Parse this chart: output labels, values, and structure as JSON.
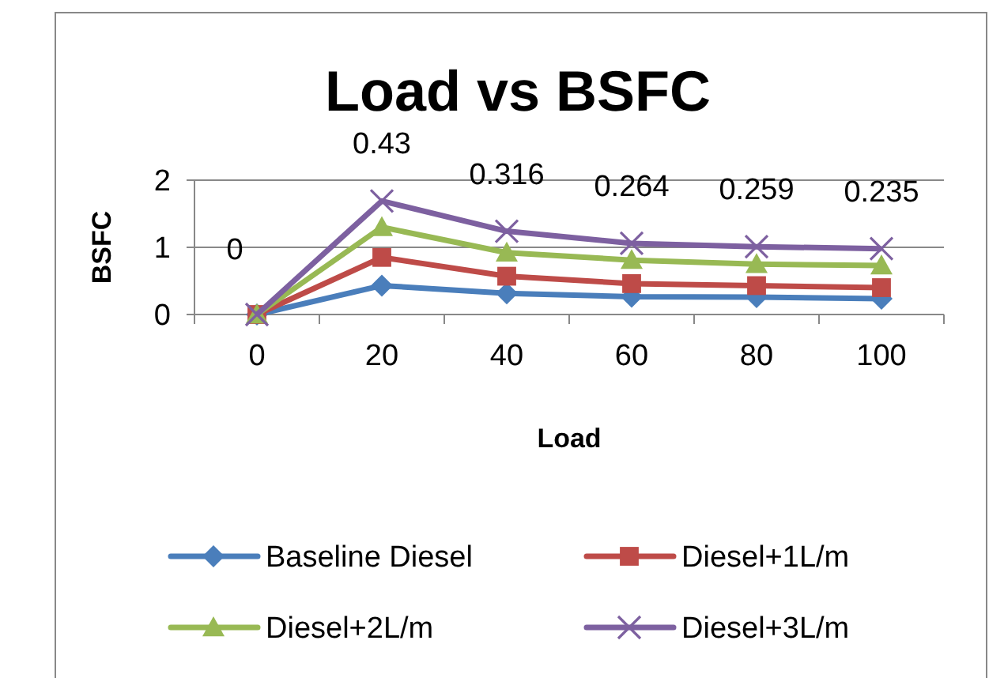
{
  "chart_data": {
    "type": "line",
    "title": "Load vs BSFC",
    "xlabel": "Load",
    "ylabel": "BSFC",
    "categories": [
      "0",
      "20",
      "40",
      "60",
      "80",
      "100"
    ],
    "ylim": [
      0,
      2
    ],
    "yticks": [
      0,
      1,
      2
    ],
    "grid": "y",
    "legend": "bottom",
    "line_style": "solid",
    "annotations": [
      "0",
      "0.43",
      "0.316",
      "0.264",
      "0.259",
      "0.235"
    ],
    "series": [
      {
        "name": "Baseline Diesel",
        "color": "#4a7ebb",
        "marker": "diamond",
        "values": [
          0,
          0.43,
          0.316,
          0.264,
          0.259,
          0.235
        ]
      },
      {
        "name": "Diesel+1L/m",
        "color": "#be4b48",
        "marker": "square",
        "values": [
          0,
          0.85,
          0.57,
          0.46,
          0.43,
          0.4
        ]
      },
      {
        "name": "Diesel+2L/m",
        "color": "#98b954",
        "marker": "triangle",
        "values": [
          0,
          1.3,
          0.92,
          0.81,
          0.75,
          0.73
        ]
      },
      {
        "name": "Diesel+3L/m",
        "color": "#7d60a0",
        "marker": "cross",
        "values": [
          0,
          1.69,
          1.24,
          1.06,
          1.01,
          0.98
        ]
      }
    ]
  }
}
